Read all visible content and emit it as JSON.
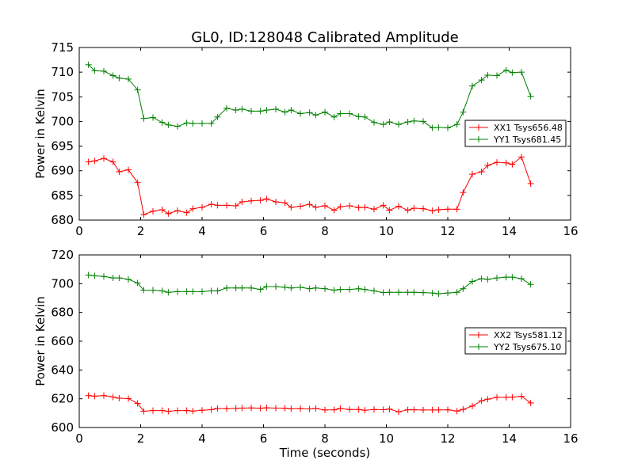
{
  "figure": {
    "title": "GL0, ID:128048 Calibrated Amplitude"
  },
  "chart_data": [
    {
      "type": "line",
      "ylabel": "Power in Kelvin",
      "xlabel": "",
      "xlim": [
        0,
        16
      ],
      "ylim": [
        680,
        715
      ],
      "xticks": [
        0,
        2,
        4,
        6,
        8,
        10,
        12,
        14,
        16
      ],
      "yticks": [
        680,
        685,
        690,
        695,
        700,
        705,
        710,
        715
      ],
      "marker": "+",
      "legend_position": "center-right",
      "x": [
        0.3,
        0.5,
        0.8,
        1.1,
        1.3,
        1.6,
        1.9,
        2.1,
        2.4,
        2.7,
        2.9,
        3.2,
        3.5,
        3.7,
        4.0,
        4.3,
        4.5,
        4.8,
        5.1,
        5.3,
        5.6,
        5.9,
        6.1,
        6.4,
        6.7,
        6.9,
        7.2,
        7.5,
        7.7,
        8.0,
        8.3,
        8.5,
        8.8,
        9.1,
        9.3,
        9.6,
        9.9,
        10.1,
        10.4,
        10.7,
        10.9,
        11.2,
        11.5,
        11.7,
        12.0,
        12.3,
        12.5,
        12.8,
        13.1,
        13.3,
        13.6,
        13.9,
        14.1,
        14.4,
        14.7
      ],
      "series": [
        {
          "name": "XX1 Tsys656.48",
          "color": "#ff0000",
          "values": [
            691.8,
            692.0,
            692.5,
            691.8,
            689.8,
            690.2,
            687.6,
            681.1,
            681.8,
            682.1,
            681.3,
            681.9,
            681.5,
            682.3,
            682.6,
            683.2,
            683.0,
            683.0,
            682.9,
            683.7,
            683.9,
            684.0,
            684.3,
            683.7,
            683.5,
            682.6,
            682.8,
            683.2,
            682.6,
            682.9,
            682.0,
            682.7,
            682.9,
            682.5,
            682.6,
            682.2,
            683.0,
            682.0,
            682.8,
            682.0,
            682.4,
            682.3,
            681.9,
            682.1,
            682.2,
            682.2,
            685.6,
            689.3,
            689.8,
            691.1,
            691.7,
            691.6,
            691.3,
            692.8,
            687.4
          ]
        },
        {
          "name": "YY1 Tsys681.45",
          "color": "#008000",
          "values": [
            711.5,
            710.3,
            710.2,
            709.3,
            708.8,
            708.6,
            706.4,
            700.6,
            700.8,
            699.8,
            699.3,
            699.0,
            699.7,
            699.6,
            699.6,
            699.6,
            700.9,
            702.7,
            702.3,
            702.5,
            702.1,
            702.1,
            702.3,
            702.5,
            701.9,
            702.3,
            701.6,
            701.8,
            701.3,
            701.9,
            700.9,
            701.6,
            701.6,
            701.0,
            700.9,
            699.8,
            699.4,
            699.9,
            699.4,
            699.9,
            700.1,
            700.0,
            698.7,
            698.8,
            698.7,
            699.4,
            701.9,
            707.2,
            708.4,
            709.4,
            709.3,
            710.4,
            709.9,
            710.0,
            705.1
          ]
        }
      ]
    },
    {
      "type": "line",
      "ylabel": "Power in Kelvin",
      "xlabel": "Time (seconds)",
      "xlim": [
        0,
        16
      ],
      "ylim": [
        600,
        720
      ],
      "xticks": [
        0,
        2,
        4,
        6,
        8,
        10,
        12,
        14,
        16
      ],
      "yticks": [
        600,
        620,
        640,
        660,
        680,
        700,
        720
      ],
      "marker": "+",
      "legend_position": "center-right",
      "x": [
        0.3,
        0.5,
        0.8,
        1.1,
        1.3,
        1.6,
        1.9,
        2.1,
        2.4,
        2.7,
        2.9,
        3.2,
        3.5,
        3.7,
        4.0,
        4.3,
        4.5,
        4.8,
        5.1,
        5.3,
        5.6,
        5.9,
        6.1,
        6.4,
        6.7,
        6.9,
        7.2,
        7.5,
        7.7,
        8.0,
        8.3,
        8.5,
        8.8,
        9.1,
        9.3,
        9.6,
        9.9,
        10.1,
        10.4,
        10.7,
        10.9,
        11.2,
        11.5,
        11.7,
        12.0,
        12.3,
        12.5,
        12.8,
        13.1,
        13.3,
        13.6,
        13.9,
        14.1,
        14.4,
        14.7
      ],
      "series": [
        {
          "name": "XX2 Tsys581.12",
          "color": "#ff0000",
          "values": [
            622.2,
            621.8,
            622.2,
            621.2,
            620.4,
            620.1,
            616.8,
            611.3,
            611.8,
            611.8,
            611.3,
            611.8,
            611.8,
            611.4,
            612.0,
            612.4,
            613.3,
            613.1,
            613.3,
            613.5,
            613.6,
            613.4,
            613.7,
            613.5,
            613.4,
            613.0,
            613.1,
            612.9,
            613.3,
            612.2,
            612.3,
            613.2,
            612.5,
            612.5,
            612.0,
            612.5,
            612.4,
            612.8,
            610.9,
            612.3,
            612.3,
            612.2,
            612.2,
            612.2,
            612.3,
            611.4,
            612.6,
            614.9,
            618.6,
            619.7,
            621.0,
            621.0,
            621.1,
            621.7,
            617.1
          ]
        },
        {
          "name": "YY2 Tsys675.10",
          "color": "#008000",
          "values": [
            706.0,
            705.5,
            705.0,
            704.0,
            704.0,
            703.0,
            700.5,
            695.5,
            695.5,
            695.0,
            694.0,
            694.5,
            694.5,
            694.5,
            694.5,
            695.0,
            695.0,
            697.0,
            697.0,
            697.0,
            697.0,
            696.0,
            698.0,
            698.0,
            697.5,
            697.0,
            697.5,
            696.5,
            697.0,
            696.5,
            695.5,
            696.0,
            696.0,
            696.5,
            696.0,
            695.0,
            693.8,
            694.0,
            694.0,
            694.0,
            694.0,
            693.8,
            693.5,
            693.0,
            693.5,
            694.0,
            696.5,
            701.5,
            703.5,
            703.0,
            704.0,
            704.5,
            704.5,
            703.5,
            699.5
          ]
        }
      ]
    }
  ]
}
